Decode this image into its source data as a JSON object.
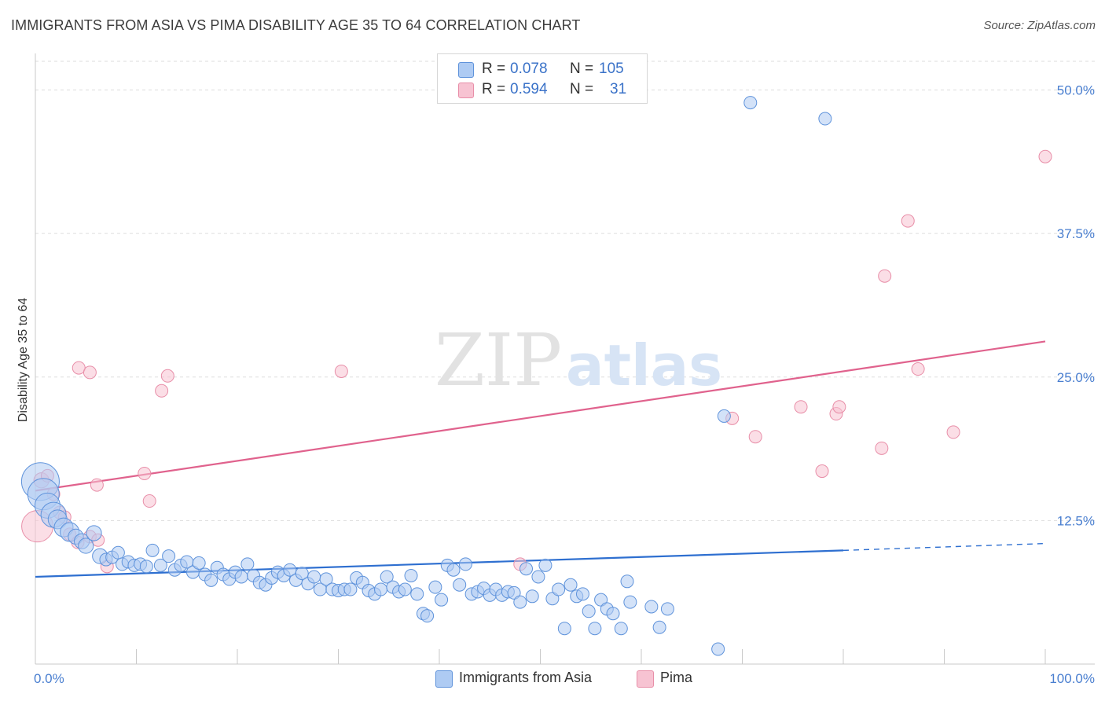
{
  "header": {
    "title": "IMMIGRANTS FROM ASIA VS PIMA DISABILITY AGE 35 TO 64 CORRELATION CHART",
    "source": "Source: ZipAtlas.com"
  },
  "watermark": {
    "zip": "ZIP",
    "atlas": "atlas"
  },
  "legend": {
    "rows": [
      {
        "r_label": "R =",
        "r_value": "0.078",
        "n_label": "N =",
        "n_value": "105"
      },
      {
        "r_label": "R =",
        "r_value": "0.594",
        "n_label": "N =",
        "n_value": "31"
      }
    ]
  },
  "colors": {
    "blue_fill": "#aecbf3",
    "blue_stroke": "#5f93db",
    "blue_line": "#2e6fd0",
    "pink_fill": "#f7c3d2",
    "pink_stroke": "#e88ea8",
    "pink_line": "#e0628d",
    "tick_label": "#4a7fd0",
    "grid": "#dddddd"
  },
  "chart_data": {
    "type": "scatter",
    "title": "IMMIGRANTS FROM ASIA VS PIMA DISABILITY AGE 35 TO 64 CORRELATION CHART",
    "xlabel": "",
    "ylabel": "Disability Age 35 to 64",
    "xlim": [
      0,
      100
    ],
    "ylim": [
      0,
      52.5
    ],
    "x_tick_labels": [
      "0.0%",
      "100.0%"
    ],
    "y_ticks": [
      12.5,
      25.0,
      37.5,
      50.0
    ],
    "y_tick_labels": [
      "12.5%",
      "25.0%",
      "37.5%",
      "50.0%"
    ],
    "grid": true,
    "legend_position": "top-center",
    "series": [
      {
        "name": "Immigrants from Asia",
        "color": "#aecbf3",
        "trend": {
          "x": [
            0,
            80
          ],
          "y": [
            7.6,
            9.9
          ],
          "dashed_extension_to_x": 100,
          "dashed_y_end": 10.5
        },
        "points": [
          [
            0.5,
            15.9,
            3
          ],
          [
            0.8,
            14.8,
            2.5
          ],
          [
            1.2,
            13.8,
            2
          ],
          [
            1.8,
            13.0,
            2
          ],
          [
            2.2,
            12.6,
            1.5
          ],
          [
            2.8,
            11.9,
            1.5
          ],
          [
            3.4,
            11.5,
            1.5
          ],
          [
            4.0,
            11.1,
            1.2
          ],
          [
            4.6,
            10.7,
            1.2
          ],
          [
            5.0,
            10.3,
            1.2
          ],
          [
            5.8,
            11.4,
            1.2
          ],
          [
            6.4,
            9.4,
            1.2
          ],
          [
            7.0,
            9.1,
            1
          ],
          [
            7.6,
            9.3,
            1
          ],
          [
            8.2,
            9.7,
            1
          ],
          [
            8.6,
            8.7,
            1
          ],
          [
            9.2,
            8.9,
            1
          ],
          [
            9.8,
            8.6,
            1
          ],
          [
            10.4,
            8.7,
            1
          ],
          [
            11.0,
            8.5,
            1
          ],
          [
            11.6,
            9.9,
            1
          ],
          [
            12.4,
            8.6,
            1
          ],
          [
            13.2,
            9.4,
            1
          ],
          [
            13.8,
            8.2,
            1
          ],
          [
            14.4,
            8.6,
            1
          ],
          [
            15.0,
            8.9,
            1
          ],
          [
            15.6,
            8.0,
            1
          ],
          [
            16.2,
            8.8,
            1
          ],
          [
            16.8,
            7.8,
            1
          ],
          [
            17.4,
            7.3,
            1
          ],
          [
            18.0,
            8.4,
            1
          ],
          [
            18.6,
            7.8,
            1
          ],
          [
            19.2,
            7.4,
            1
          ],
          [
            19.8,
            8.0,
            1
          ],
          [
            20.4,
            7.6,
            1
          ],
          [
            21.0,
            8.7,
            1
          ],
          [
            21.6,
            7.7,
            1
          ],
          [
            22.2,
            7.1,
            1
          ],
          [
            22.8,
            6.9,
            1
          ],
          [
            23.4,
            7.5,
            1
          ],
          [
            24.0,
            8.0,
            1
          ],
          [
            24.6,
            7.7,
            1
          ],
          [
            25.2,
            8.2,
            1
          ],
          [
            25.8,
            7.3,
            1
          ],
          [
            26.4,
            7.9,
            1
          ],
          [
            27.0,
            7.0,
            1
          ],
          [
            27.6,
            7.6,
            1
          ],
          [
            28.2,
            6.5,
            1
          ],
          [
            28.8,
            7.4,
            1
          ],
          [
            29.4,
            6.5,
            1
          ],
          [
            30.0,
            6.4,
            1
          ],
          [
            30.6,
            6.5,
            1
          ],
          [
            31.2,
            6.5,
            1
          ],
          [
            31.8,
            7.5,
            1
          ],
          [
            32.4,
            7.1,
            1
          ],
          [
            33.0,
            6.4,
            1
          ],
          [
            33.6,
            6.1,
            1
          ],
          [
            34.2,
            6.5,
            1
          ],
          [
            34.8,
            7.6,
            1
          ],
          [
            35.4,
            6.7,
            1
          ],
          [
            36.0,
            6.3,
            1
          ],
          [
            36.6,
            6.5,
            1
          ],
          [
            37.2,
            7.7,
            1
          ],
          [
            37.8,
            6.1,
            1
          ],
          [
            38.4,
            4.4,
            1
          ],
          [
            38.8,
            4.2,
            1
          ],
          [
            39.6,
            6.7,
            1
          ],
          [
            40.2,
            5.6,
            1
          ],
          [
            40.8,
            8.6,
            1
          ],
          [
            41.4,
            8.2,
            1
          ],
          [
            42.0,
            6.9,
            1
          ],
          [
            42.6,
            8.7,
            1
          ],
          [
            43.2,
            6.1,
            1
          ],
          [
            43.8,
            6.3,
            1
          ],
          [
            44.4,
            6.6,
            1
          ],
          [
            45.0,
            6.0,
            1
          ],
          [
            45.6,
            6.5,
            1
          ],
          [
            46.2,
            6.0,
            1
          ],
          [
            46.8,
            6.3,
            1
          ],
          [
            47.4,
            6.2,
            1
          ],
          [
            48.0,
            5.4,
            1
          ],
          [
            48.6,
            8.3,
            1
          ],
          [
            49.2,
            5.9,
            1
          ],
          [
            49.8,
            7.6,
            1
          ],
          [
            50.5,
            8.6,
            1
          ],
          [
            51.2,
            5.7,
            1
          ],
          [
            51.8,
            6.5,
            1
          ],
          [
            52.4,
            3.1,
            1
          ],
          [
            53.0,
            6.9,
            1
          ],
          [
            53.6,
            5.9,
            1
          ],
          [
            54.2,
            6.1,
            1
          ],
          [
            54.8,
            4.6,
            1
          ],
          [
            55.4,
            3.1,
            1
          ],
          [
            56.0,
            5.6,
            1
          ],
          [
            56.6,
            4.8,
            1
          ],
          [
            57.2,
            4.4,
            1
          ],
          [
            58.0,
            3.1,
            1
          ],
          [
            58.6,
            7.2,
            1
          ],
          [
            58.9,
            5.4,
            1
          ],
          [
            61.0,
            5.0,
            1
          ],
          [
            61.8,
            3.2,
            1
          ],
          [
            62.6,
            4.8,
            1
          ],
          [
            68.2,
            21.6,
            1
          ],
          [
            70.8,
            48.9,
            1
          ],
          [
            78.2,
            47.5,
            1
          ],
          [
            67.6,
            1.3,
            1
          ]
        ]
      },
      {
        "name": "Pima",
        "color": "#f7c3d2",
        "trend": {
          "x": [
            0,
            100
          ],
          "y": [
            15.1,
            28.1
          ]
        },
        "points": [
          [
            0.2,
            12.0,
            2.5
          ],
          [
            0.6,
            16.0,
            1.2
          ],
          [
            1.2,
            16.4,
            1
          ],
          [
            1.8,
            14.8,
            1
          ],
          [
            2.4,
            13.2,
            1
          ],
          [
            2.9,
            12.8,
            1
          ],
          [
            3.4,
            11.3,
            1
          ],
          [
            4.2,
            10.6,
            1
          ],
          [
            5.4,
            11.1,
            1
          ],
          [
            6.2,
            10.8,
            1
          ],
          [
            4.3,
            25.8,
            1
          ],
          [
            5.4,
            25.4,
            1
          ],
          [
            6.1,
            15.6,
            1
          ],
          [
            7.1,
            8.5,
            1
          ],
          [
            10.8,
            16.6,
            1
          ],
          [
            11.3,
            14.2,
            1
          ],
          [
            12.5,
            23.8,
            1
          ],
          [
            13.1,
            25.1,
            1
          ],
          [
            30.3,
            25.5,
            1
          ],
          [
            48.0,
            8.7,
            1
          ],
          [
            69.0,
            21.4,
            1
          ],
          [
            71.3,
            19.8,
            1
          ],
          [
            75.8,
            22.4,
            1
          ],
          [
            77.9,
            16.8,
            1
          ],
          [
            79.3,
            21.8,
            1
          ],
          [
            79.6,
            22.4,
            1
          ],
          [
            83.8,
            18.8,
            1
          ],
          [
            84.1,
            33.8,
            1
          ],
          [
            86.4,
            38.6,
            1
          ],
          [
            87.4,
            25.7,
            1
          ],
          [
            90.9,
            20.2,
            1
          ],
          [
            100.0,
            44.2,
            1
          ]
        ]
      }
    ]
  }
}
